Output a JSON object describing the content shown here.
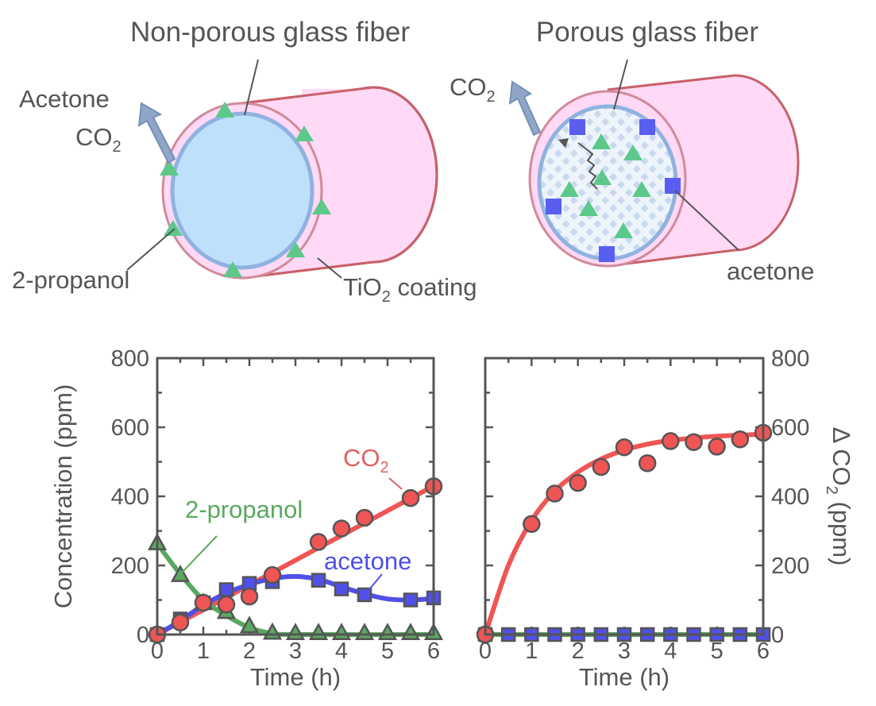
{
  "diagrams": {
    "left": {
      "title": "Non-porous glass fiber",
      "label_acetone": "Acetone",
      "label_co2": "CO",
      "label_co2_sub": "2",
      "label_propanol": "2-propanol",
      "label_coating_pre": "TiO",
      "label_coating_sub": "2",
      "label_coating_post": " coating"
    },
    "right": {
      "title": "Porous glass fiber",
      "label_co2": "CO",
      "label_co2_sub": "2",
      "label_acetone": "acetone"
    },
    "colors": {
      "fiber_body": "#ffd9f5",
      "fiber_edge": "#c8606a",
      "core": "#bfe0fb",
      "core_edge": "#8fb2e0",
      "triangle": "#5cc98a",
      "square": "#5a5ef0",
      "arrow": "#8fa6c8"
    }
  },
  "chart_data": [
    {
      "type": "line",
      "xlabel": "Time (h)",
      "ylabel": "Concentration (ppm)",
      "xlim": [
        0,
        6
      ],
      "ylim": [
        0,
        800
      ],
      "xticks": [
        "0",
        "1",
        "2",
        "3",
        "4",
        "5",
        "6"
      ],
      "yticks": [
        "0",
        "200",
        "400",
        "600",
        "800"
      ],
      "grid": false,
      "series": [
        {
          "name": "CO",
          "name_sub": "2",
          "color": "#f05555",
          "marker": "circle",
          "x": [
            0,
            0.5,
            1,
            1.5,
            2,
            2.5,
            3.5,
            4,
            4.5,
            5.5,
            6
          ],
          "y": [
            0,
            35,
            92,
            87,
            110,
            172,
            268,
            307,
            338,
            395,
            429
          ],
          "fit_x": [
            0,
            6
          ],
          "fit_y": [
            0,
            430
          ]
        },
        {
          "name": "acetone",
          "color": "#5050e8",
          "marker": "square",
          "x": [
            0,
            0.5,
            1,
            1.5,
            2,
            2.5,
            3.5,
            4,
            4.5,
            5.5,
            6
          ],
          "y": [
            0,
            45,
            92,
            130,
            148,
            153,
            157,
            132,
            115,
            100,
            106
          ],
          "fit_x": [
            0,
            0.5,
            1,
            1.5,
            2,
            2.5,
            3,
            3.5,
            4,
            4.5,
            5,
            5.5,
            6
          ],
          "fit_y": [
            0,
            40,
            85,
            120,
            145,
            162,
            168,
            160,
            138,
            118,
            103,
            100,
            104
          ]
        },
        {
          "name": "2-propanol",
          "color": "#5aa860",
          "marker": "triangle",
          "x": [
            0,
            0.5,
            1,
            1.5,
            2,
            2.5,
            3,
            3.5,
            4,
            4.5,
            5,
            5.5,
            6
          ],
          "y": [
            263,
            171,
            90,
            64,
            23,
            4,
            3,
            3,
            3,
            3,
            3,
            3,
            3
          ],
          "fit_x": [
            0,
            0.5,
            1,
            1.5,
            2,
            2.5,
            3,
            6
          ],
          "fit_y": [
            263,
            175,
            100,
            55,
            20,
            3,
            0,
            0
          ]
        }
      ]
    },
    {
      "type": "line",
      "xlabel": "Time (h)",
      "ylabel_pre": "Δ CO",
      "ylabel_sub": "2",
      "ylabel_post": " (ppm)",
      "xlim": [
        0,
        6
      ],
      "ylim": [
        0,
        800
      ],
      "xticks": [
        "0",
        "1",
        "2",
        "3",
        "4",
        "5",
        "6"
      ],
      "yticks": [
        "0",
        "200",
        "400",
        "600",
        "800"
      ],
      "yaxis_side": "right",
      "grid": false,
      "series": [
        {
          "color": "#f05555",
          "marker": "circle",
          "x": [
            0,
            1,
            1.5,
            2,
            2.5,
            3,
            3.5,
            4,
            4.5,
            5,
            5.5,
            6
          ],
          "y": [
            0,
            320,
            408,
            439,
            485,
            542,
            496,
            560,
            557,
            544,
            565,
            584
          ],
          "fit_x": [
            0,
            0.5,
            1,
            1.5,
            2,
            2.5,
            3,
            3.5,
            4,
            4.5,
            5,
            5.5,
            6
          ],
          "fit_y": [
            0,
            200,
            330,
            415,
            470,
            508,
            534,
            551,
            562,
            569,
            574,
            577,
            580
          ]
        },
        {
          "color": "#5aa860",
          "marker": "none",
          "x": [],
          "y": [],
          "fit_x": [
            0,
            6
          ],
          "fit_y": [
            0,
            0
          ]
        },
        {
          "color": "#5050e8",
          "marker": "square",
          "x": [
            0,
            0.5,
            1,
            1.5,
            2,
            2.5,
            3,
            3.5,
            4,
            4.5,
            5,
            5.5,
            6
          ],
          "y": [
            0,
            0,
            0,
            0,
            0,
            0,
            0,
            0,
            0,
            0,
            0,
            0,
            0
          ]
        }
      ]
    }
  ]
}
